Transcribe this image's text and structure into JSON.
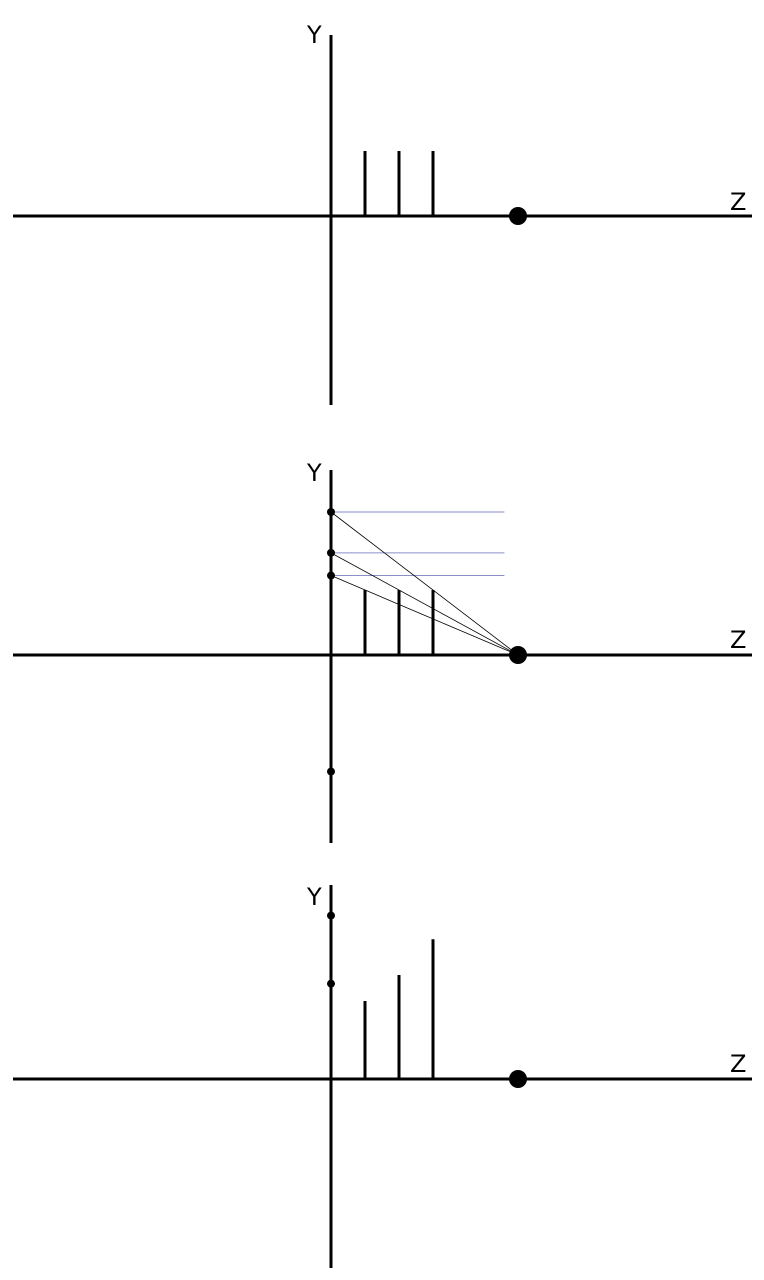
{
  "diagram": {
    "title_text": "",
    "colors": {
      "ink": "#000000",
      "projection_line": "#000000",
      "guide_line": "#8a8fc8",
      "background": "#ffffff"
    },
    "panels": [
      {
        "id": "panel-1",
        "description_step": "original",
        "y_label": "Y",
        "z_label": "Z",
        "bars": [
          {
            "z": 1,
            "height": 1
          },
          {
            "z": 2,
            "height": 1
          },
          {
            "z": 3,
            "height": 1
          }
        ],
        "focal_point": {
          "z": 5.5
        },
        "show_projection": false,
        "show_axis_dots": false
      },
      {
        "id": "panel-2",
        "description_step": "projection",
        "y_label": "Y",
        "z_label": "Z",
        "bars": [
          {
            "z": 1,
            "height": 1
          },
          {
            "z": 2,
            "height": 1
          },
          {
            "z": 3,
            "height": 1
          }
        ],
        "focal_point": {
          "z": 5.5
        },
        "show_projection": true,
        "show_axis_dots": true
      },
      {
        "id": "panel-3",
        "description_step": "result",
        "y_label": "Y",
        "z_label": "Z",
        "bars": [
          {
            "z": 1,
            "height": 1.2
          },
          {
            "z": 2,
            "height": 1.6
          },
          {
            "z": 3,
            "height": 2.15
          }
        ],
        "focal_point": {
          "z": 5.5
        },
        "show_projection": false,
        "show_axis_dots": true
      }
    ]
  }
}
